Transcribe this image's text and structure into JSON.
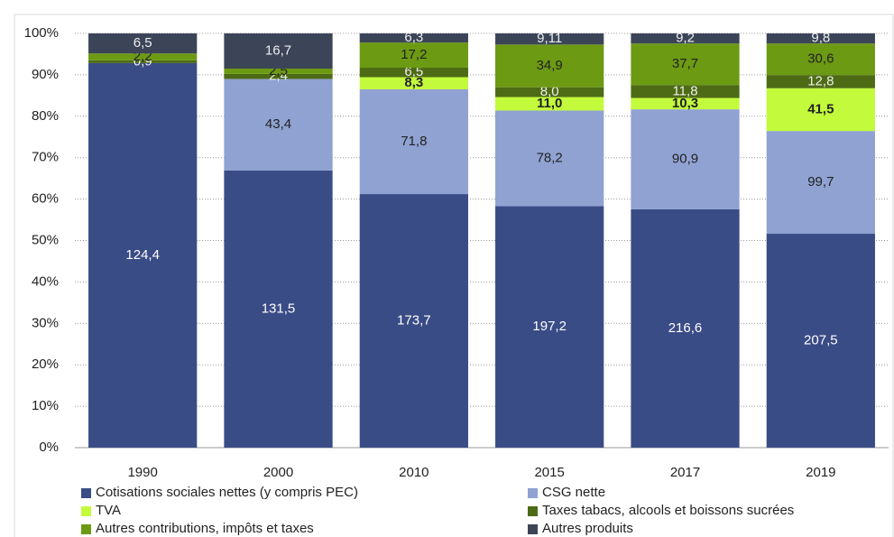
{
  "chart_data": {
    "type": "bar",
    "stack": "percent",
    "categories": [
      "1990",
      "2000",
      "2010",
      "2015",
      "2017",
      "2019"
    ],
    "ylim": [
      0,
      100
    ],
    "yticks": [
      {
        "value": 0,
        "label": "0%"
      },
      {
        "value": 10,
        "label": "10%"
      },
      {
        "value": 20,
        "label": "20%"
      },
      {
        "value": 30,
        "label": "30%"
      },
      {
        "value": 40,
        "label": "40%"
      },
      {
        "value": 50,
        "label": "50%"
      },
      {
        "value": 60,
        "label": "60%"
      },
      {
        "value": 70,
        "label": "70%"
      },
      {
        "value": 80,
        "label": "80%"
      },
      {
        "value": 90,
        "label": "90%"
      },
      {
        "value": 100,
        "label": "100%"
      }
    ],
    "grid": true,
    "legend": "bottom",
    "series": [
      {
        "name": "Cotisations sociales nettes (y compris PEC)",
        "color": "#3a4c86",
        "values": [
          124.4,
          131.5,
          173.7,
          197.2,
          216.6,
          207.5
        ],
        "value_labels": [
          "124,4",
          "131,5",
          "173,7",
          "197,2",
          "216,6",
          "207,5"
        ]
      },
      {
        "name": "CSG nette",
        "color": "#8fa2d2",
        "values": [
          null,
          43.4,
          71.8,
          78.2,
          90.9,
          99.7
        ],
        "value_labels": [
          null,
          "43,4",
          "71,8",
          "78,2",
          "90,9",
          "99,7"
        ]
      },
      {
        "name": "TVA",
        "color": "#c3fb3c",
        "values": [
          null,
          null,
          8.3,
          11.0,
          10.3,
          41.5
        ],
        "value_labels": [
          null,
          null,
          "8,3",
          "11,0",
          "10,3",
          "41,5"
        ]
      },
      {
        "name": "Taxes tabacs, alcools et boissons sucrées",
        "color": "#4d6b14",
        "values": [
          0.9,
          2.4,
          6.5,
          8.0,
          11.8,
          12.8
        ],
        "value_labels": [
          "0,9",
          "2,4",
          "6,5",
          "8,0",
          "11,8",
          "12,8"
        ]
      },
      {
        "name": "Autres contributions, impôts et taxes",
        "color": "#6c9a13",
        "values": [
          2.2,
          2.5,
          17.2,
          34.9,
          37.7,
          30.6
        ],
        "value_labels": [
          "2,2",
          "2,5",
          "17,2",
          "34,9",
          "37,7",
          "30,6"
        ]
      },
      {
        "name": "Autres produits",
        "color": "#3c4558",
        "values": [
          6.5,
          16.7,
          6.3,
          9.11,
          9.2,
          9.8
        ],
        "value_labels": [
          "6,5",
          "16,7",
          "6,3",
          "9,11",
          "9,2",
          "9,8"
        ]
      }
    ]
  }
}
